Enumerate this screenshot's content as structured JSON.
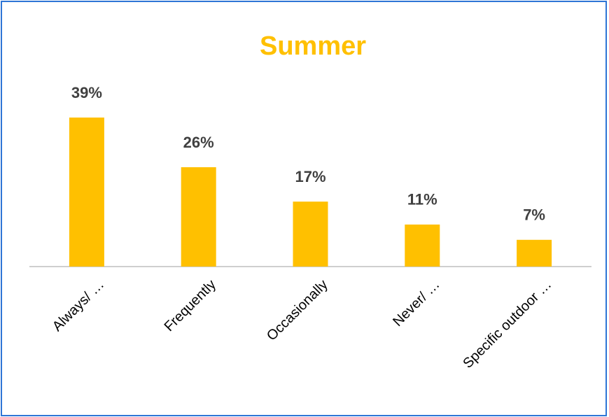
{
  "chart_data": {
    "type": "bar",
    "title": "Summer",
    "categories": [
      "Always/ …",
      "Frequently",
      "Occasionally",
      "Never/ …",
      "Specific outdoor …"
    ],
    "values": [
      39,
      26,
      17,
      11,
      7
    ],
    "value_labels": [
      "39%",
      "26%",
      "17%",
      "11%",
      "7%"
    ],
    "color": "#ffc000"
  }
}
